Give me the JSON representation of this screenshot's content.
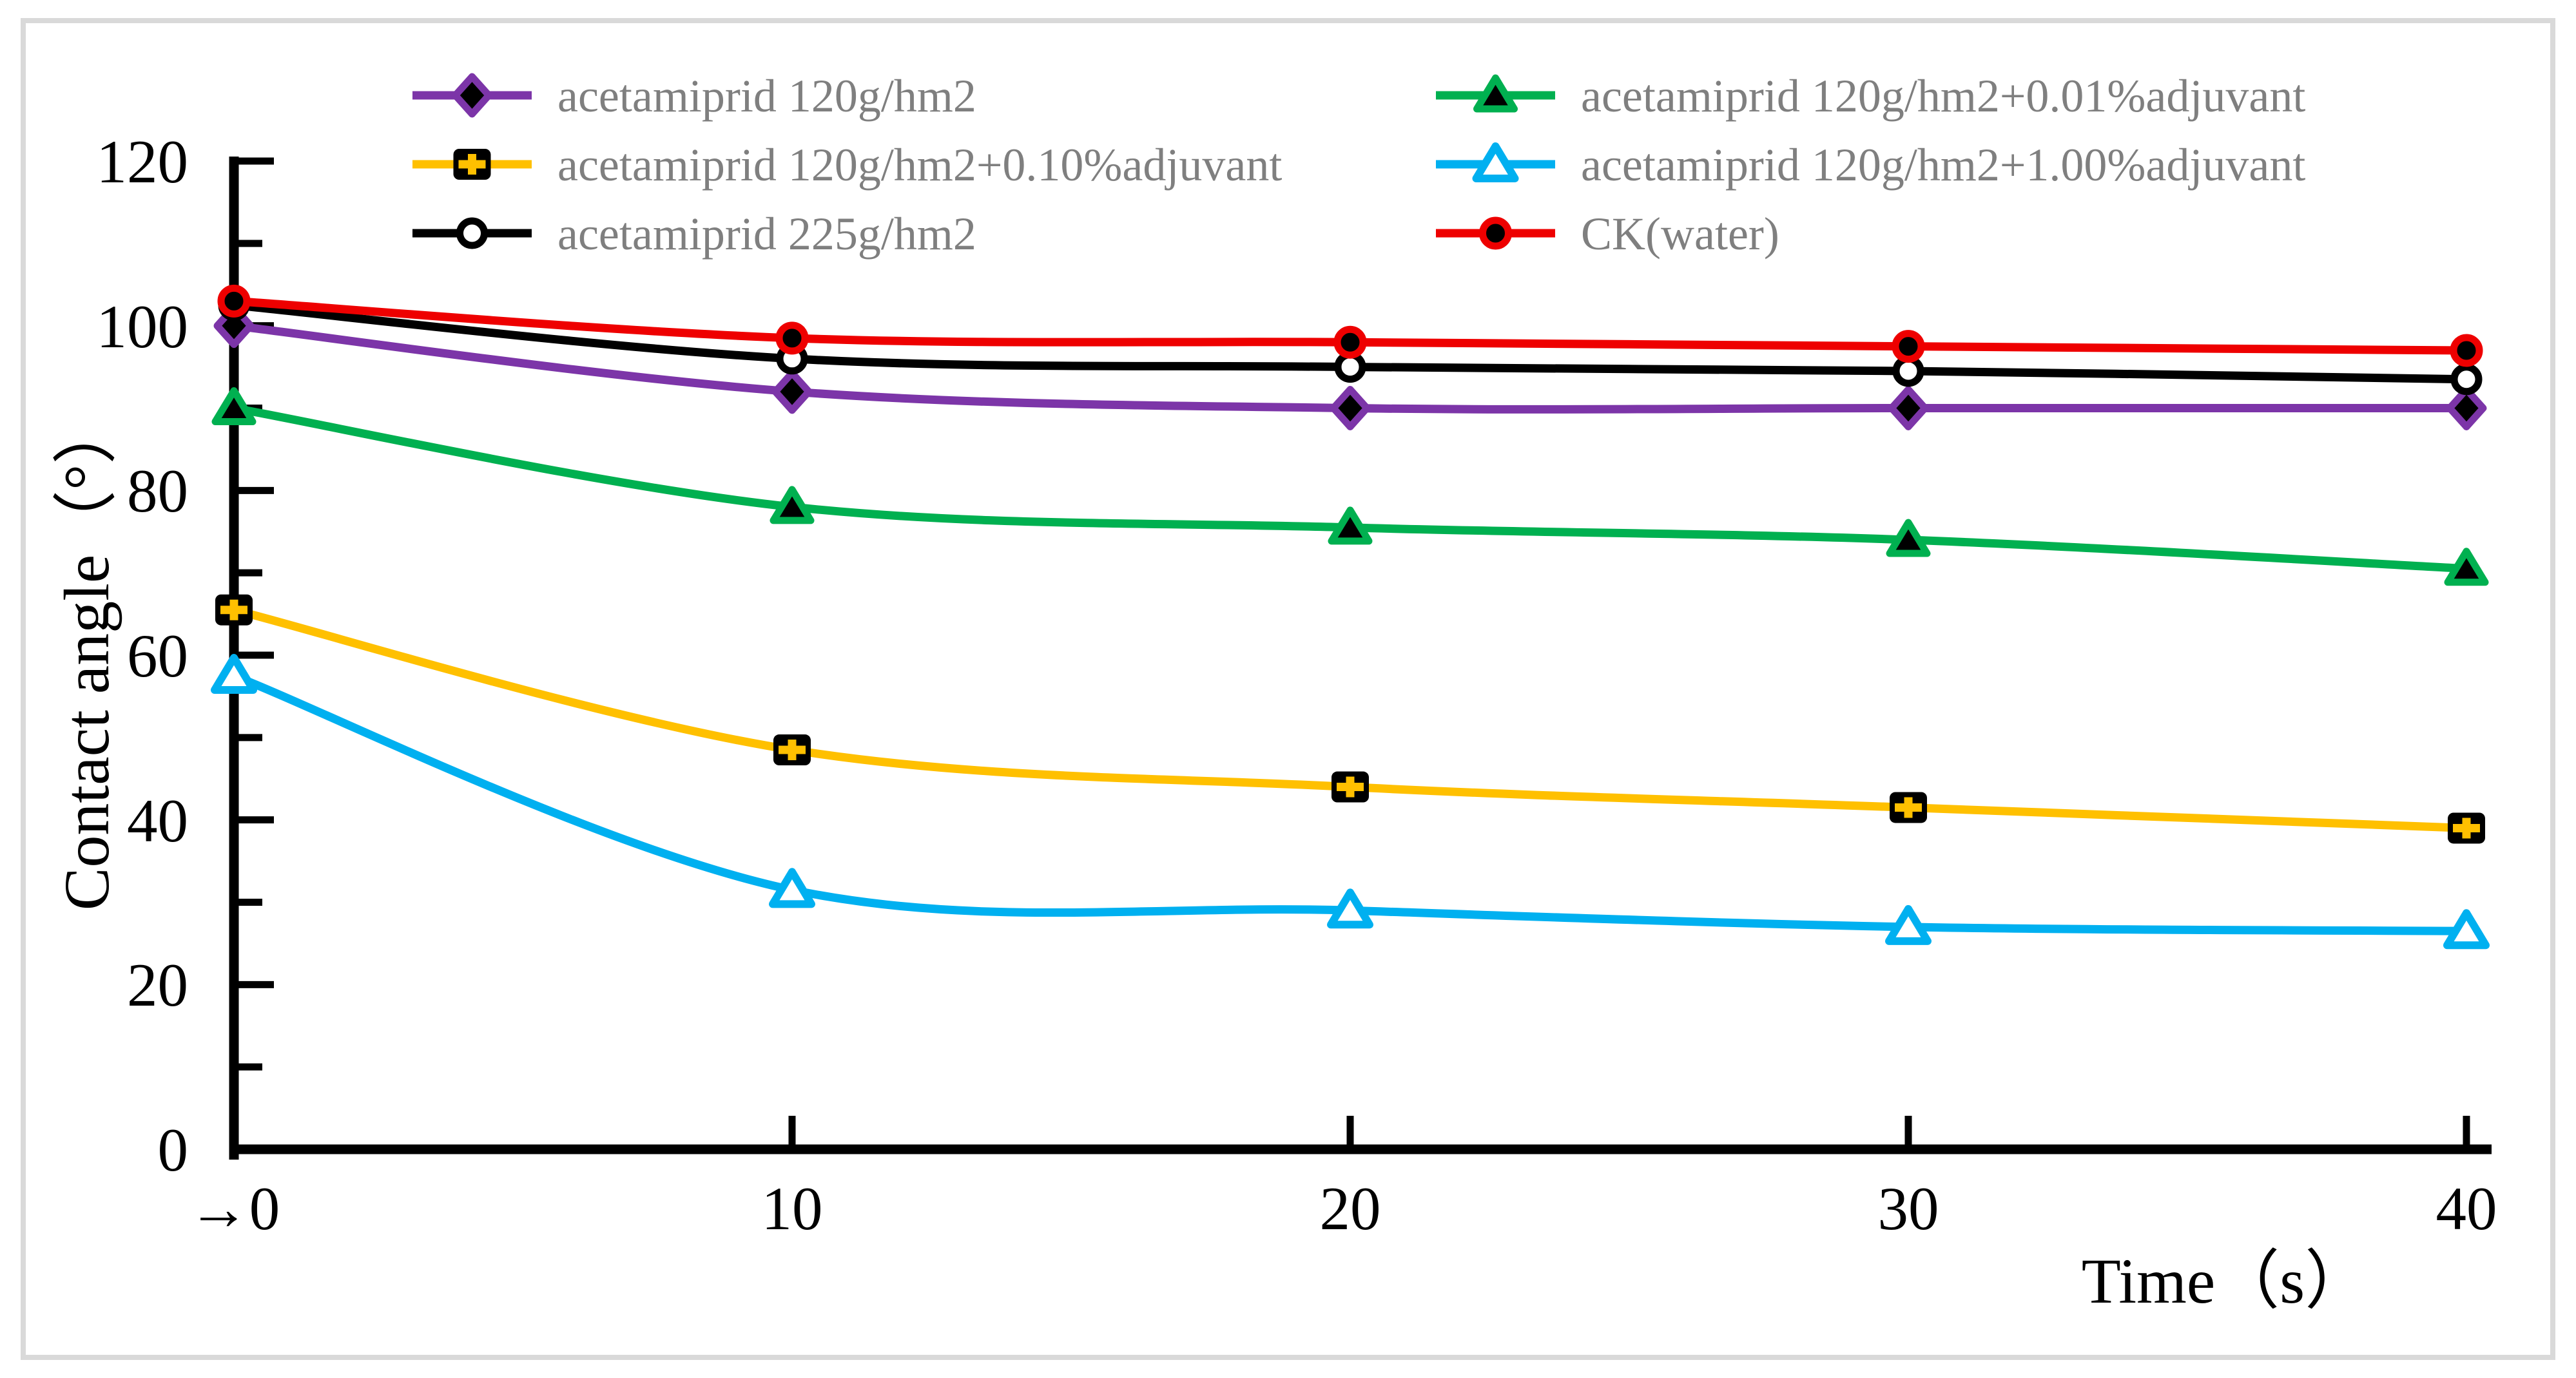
{
  "figure": {
    "background": "#ffffff",
    "border_color": "#d9d9d9",
    "axis_color": "#000000",
    "legend_text_color": "#7f7f7f"
  },
  "chart_data": {
    "type": "line",
    "title": "",
    "xlabel": "Time（s）",
    "ylabel": "Contact angle（°）",
    "categories": [
      "→0",
      "10",
      "20",
      "30",
      "40"
    ],
    "x_values": [
      0,
      10,
      20,
      30,
      40
    ],
    "ylim": [
      0,
      120
    ],
    "ytick_step_major": 20,
    "ytick_step_minor": 10,
    "ytick_labels": [
      "0",
      "20",
      "40",
      "60",
      "80",
      "100",
      "120"
    ],
    "grid": false,
    "line_style": "smoothed",
    "legend_position": "top two-column",
    "series": [
      {
        "name": "acetamiprid 120g/hm2",
        "color": "#7c35a8",
        "marker": "diamond-filled",
        "values": [
          100,
          92,
          90,
          90,
          90
        ]
      },
      {
        "name": "acetamiprid 120g/hm2+0.01%adjuvant",
        "color": "#00b050",
        "marker": "triangle-filled",
        "values": [
          90,
          78,
          75.5,
          74,
          70.5
        ]
      },
      {
        "name": "acetamiprid 120g/hm2+0.10%adjuvant",
        "color": "#ffc000",
        "marker": "plus-square",
        "values": [
          65.5,
          48.5,
          44,
          41.5,
          39
        ]
      },
      {
        "name": "acetamiprid 120g/hm2+1.00%adjuvant",
        "color": "#00b0f0",
        "marker": "triangle-open",
        "values": [
          57.5,
          31.5,
          29,
          27,
          26.5
        ]
      },
      {
        "name": "acetamiprid 225g/hm2",
        "color": "#000000",
        "marker": "circle-open",
        "values": [
          102.5,
          96,
          95,
          94.5,
          93.5
        ]
      },
      {
        "name": "CK(water)",
        "color": "#ee0000",
        "marker": "circle-filled",
        "values": [
          103,
          98.5,
          98,
          97.5,
          97
        ]
      }
    ]
  }
}
